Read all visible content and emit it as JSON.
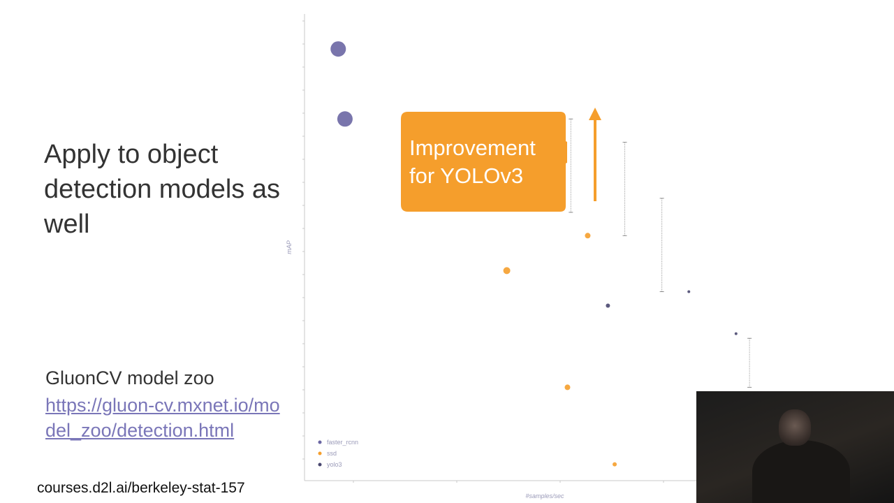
{
  "slide": {
    "heading": "Apply to object detection models as well",
    "zoo_title": "GluonCV model zoo",
    "zoo_link": "https://gluon-cv.mxnet.io/model_zoo/detection.html",
    "footer": "courses.d2l.ai/berkeley-stat-157"
  },
  "callout": {
    "text_line1": "Improvement",
    "text_line2": "for YOLOv3",
    "color": "#f59e2c"
  },
  "colors": {
    "faster_rcnn": "#6a66a3",
    "ssd": "#f59e2c",
    "yolo3": "#4a4870",
    "callout": "#f59e2c"
  },
  "chart_data": {
    "type": "scatter",
    "xlabel": "#samples/sec",
    "ylabel": "mAP",
    "legend_position": "bottom-left",
    "series": [
      {
        "name": "faster_rcnn",
        "color": "#6a66a3",
        "points": [
          {
            "x": 5,
            "y": 41.0,
            "size": 11
          },
          {
            "x": 6,
            "y": 38.0,
            "size": 11
          }
        ]
      },
      {
        "name": "ssd",
        "color": "#f59e2c",
        "points": [
          {
            "x": 30,
            "y": 31.5,
            "size": 5
          },
          {
            "x": 42,
            "y": 33.0,
            "size": 4
          },
          {
            "x": 39,
            "y": 26.5,
            "size": 4
          },
          {
            "x": 46,
            "y": 23.2,
            "size": 3
          }
        ]
      },
      {
        "name": "yolo3",
        "color": "#4a4870",
        "points": [
          {
            "x": 45,
            "y": 30.0,
            "size": 3
          },
          {
            "x": 57,
            "y": 30.6,
            "size": 2
          },
          {
            "x": 64,
            "y": 28.8,
            "size": 2
          }
        ]
      }
    ],
    "improvements": [
      {
        "x": 39.5,
        "from": 34.0,
        "to": 38.0
      },
      {
        "x": 47.5,
        "from": 33.0,
        "to": 37.0
      },
      {
        "x": 53.0,
        "from": 30.6,
        "to": 34.6
      },
      {
        "x": 66.0,
        "from": 26.5,
        "to": 28.6
      }
    ],
    "xlim": [
      0,
      75
    ],
    "ylim": [
      22.5,
      42.5
    ]
  }
}
